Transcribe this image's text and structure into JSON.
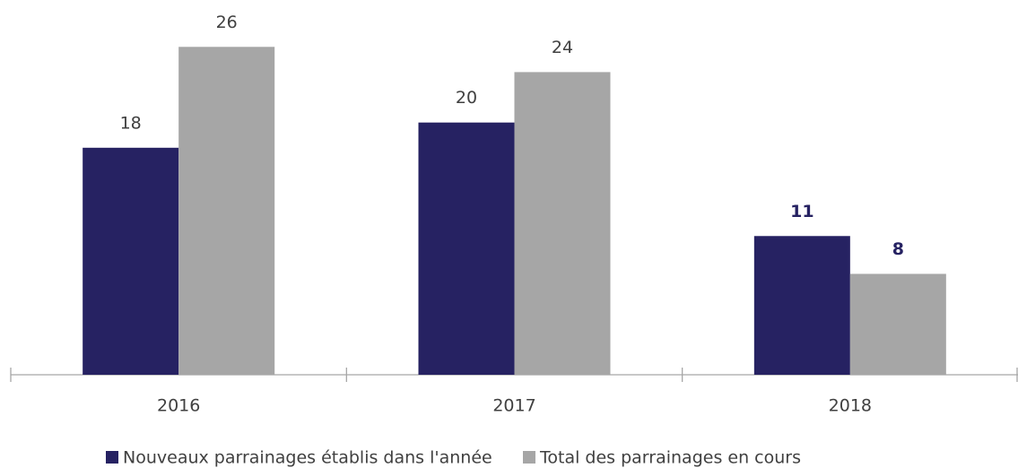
{
  "chart_data": {
    "type": "bar",
    "categories": [
      "2016",
      "2017",
      "2018"
    ],
    "series": [
      {
        "name": "Nouveaux parrainages établis dans l'année",
        "color": "#262262",
        "values": [
          18,
          20,
          11
        ]
      },
      {
        "name": "Total des parrainages en cours",
        "color": "#a6a6a6",
        "values": [
          26,
          24,
          8
        ]
      }
    ],
    "ylim": [
      0,
      30
    ]
  }
}
